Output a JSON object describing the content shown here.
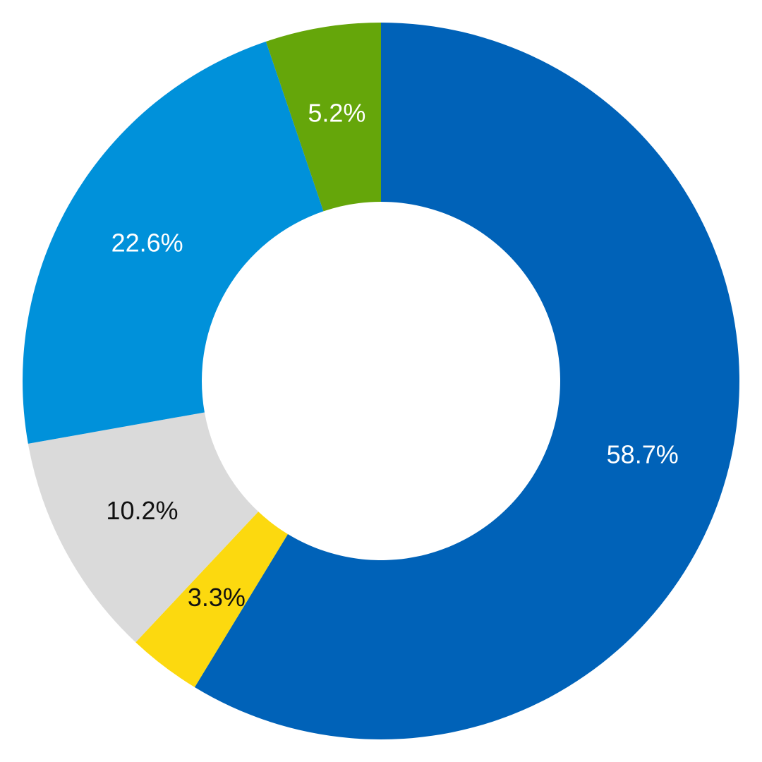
{
  "chart_data": {
    "type": "pie",
    "variant": "donut",
    "title": "",
    "slices": [
      {
        "label": "58.7%",
        "value": 58.7,
        "color": "#0062B8",
        "label_color": "#FFFFFF"
      },
      {
        "label": "3.3%",
        "value": 3.3,
        "color": "#FCD90F",
        "label_color": "#111111"
      },
      {
        "label": "10.2%",
        "value": 10.2,
        "color": "#DADADA",
        "label_color": "#111111"
      },
      {
        "label": "22.6%",
        "value": 22.6,
        "color": "#0091DA",
        "label_color": "#FFFFFF"
      },
      {
        "label": "5.2%",
        "value": 5.2,
        "color": "#65A60A",
        "label_color": "#FFFFFF"
      }
    ],
    "start_angle": "12 o'clock",
    "direction": "clockwise",
    "legend": "none",
    "background": "#FFFFFF"
  }
}
